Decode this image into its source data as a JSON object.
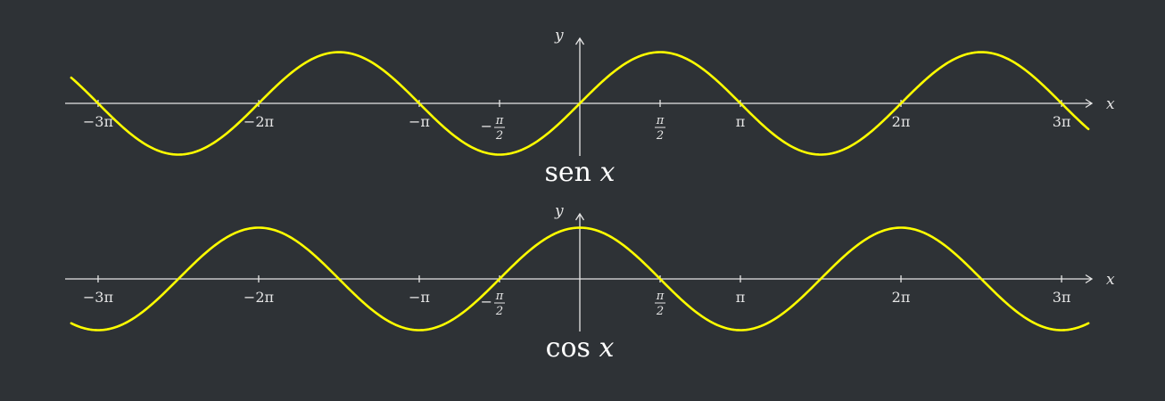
{
  "colors": {
    "background": "#2e3236",
    "axis": "#e6e6e6",
    "curve": "#ffff00",
    "title": "#ffffff"
  },
  "chart_data": [
    {
      "type": "line",
      "function": "sin",
      "title_fn": "sen",
      "title_var": "x",
      "xlabel": "x",
      "ylabel": "y",
      "xlim": [
        -10.02,
        10.02
      ],
      "ylim": [
        -1,
        1
      ],
      "grid": false,
      "x_ticks": [
        {
          "value": -9.42478,
          "label": "−3π",
          "fraction": false
        },
        {
          "value": -6.28319,
          "label": "−2π",
          "fraction": false
        },
        {
          "value": -3.14159,
          "label": "−π",
          "fraction": false
        },
        {
          "value": -1.5708,
          "label": "−π/2",
          "fraction": true,
          "sign": "−",
          "num": "π",
          "den": "2"
        },
        {
          "value": 1.5708,
          "label": "π/2",
          "fraction": true,
          "sign": "",
          "num": "π",
          "den": "2"
        },
        {
          "value": 3.14159,
          "label": "π",
          "fraction": false
        },
        {
          "value": 6.28319,
          "label": "2π",
          "fraction": false
        },
        {
          "value": 9.42478,
          "label": "3π",
          "fraction": false
        }
      ],
      "series": [
        {
          "x": [
            -9.95,
            -9.42478,
            -7.85398,
            -6.28319,
            -4.71239,
            -3.14159,
            -1.5708,
            0,
            1.5708,
            3.14159,
            4.71239,
            6.28319,
            7.85398,
            9.42478,
            9.95
          ],
          "y": [
            0.5,
            0,
            -1,
            0,
            1,
            0,
            -1,
            0,
            1,
            0,
            -1,
            0,
            1,
            0,
            -0.5
          ]
        }
      ]
    },
    {
      "type": "line",
      "function": "cos",
      "title_fn": "cos",
      "title_var": "x",
      "xlabel": "x",
      "ylabel": "y",
      "xlim": [
        -10.02,
        10.02
      ],
      "ylim": [
        -1,
        1
      ],
      "grid": false,
      "x_ticks": [
        {
          "value": -9.42478,
          "label": "−3π",
          "fraction": false
        },
        {
          "value": -6.28319,
          "label": "−2π",
          "fraction": false
        },
        {
          "value": -3.14159,
          "label": "−π",
          "fraction": false
        },
        {
          "value": -1.5708,
          "label": "−π/2",
          "fraction": true,
          "sign": "−",
          "num": "π",
          "den": "2"
        },
        {
          "value": 1.5708,
          "label": "π/2",
          "fraction": true,
          "sign": "",
          "num": "π",
          "den": "2"
        },
        {
          "value": 3.14159,
          "label": "π",
          "fraction": false
        },
        {
          "value": 6.28319,
          "label": "2π",
          "fraction": false
        },
        {
          "value": 9.42478,
          "label": "3π",
          "fraction": false
        }
      ],
      "series": [
        {
          "x": [
            -9.95,
            -9.42478,
            -7.85398,
            -6.28319,
            -4.71239,
            -3.14159,
            -1.5708,
            0,
            1.5708,
            3.14159,
            4.71239,
            6.28319,
            7.85398,
            9.42478,
            9.95
          ],
          "y": [
            -0.87,
            -1,
            0,
            1,
            0,
            -1,
            0,
            1,
            0,
            -1,
            0,
            1,
            0,
            -1,
            -0.87
          ]
        }
      ]
    }
  ]
}
